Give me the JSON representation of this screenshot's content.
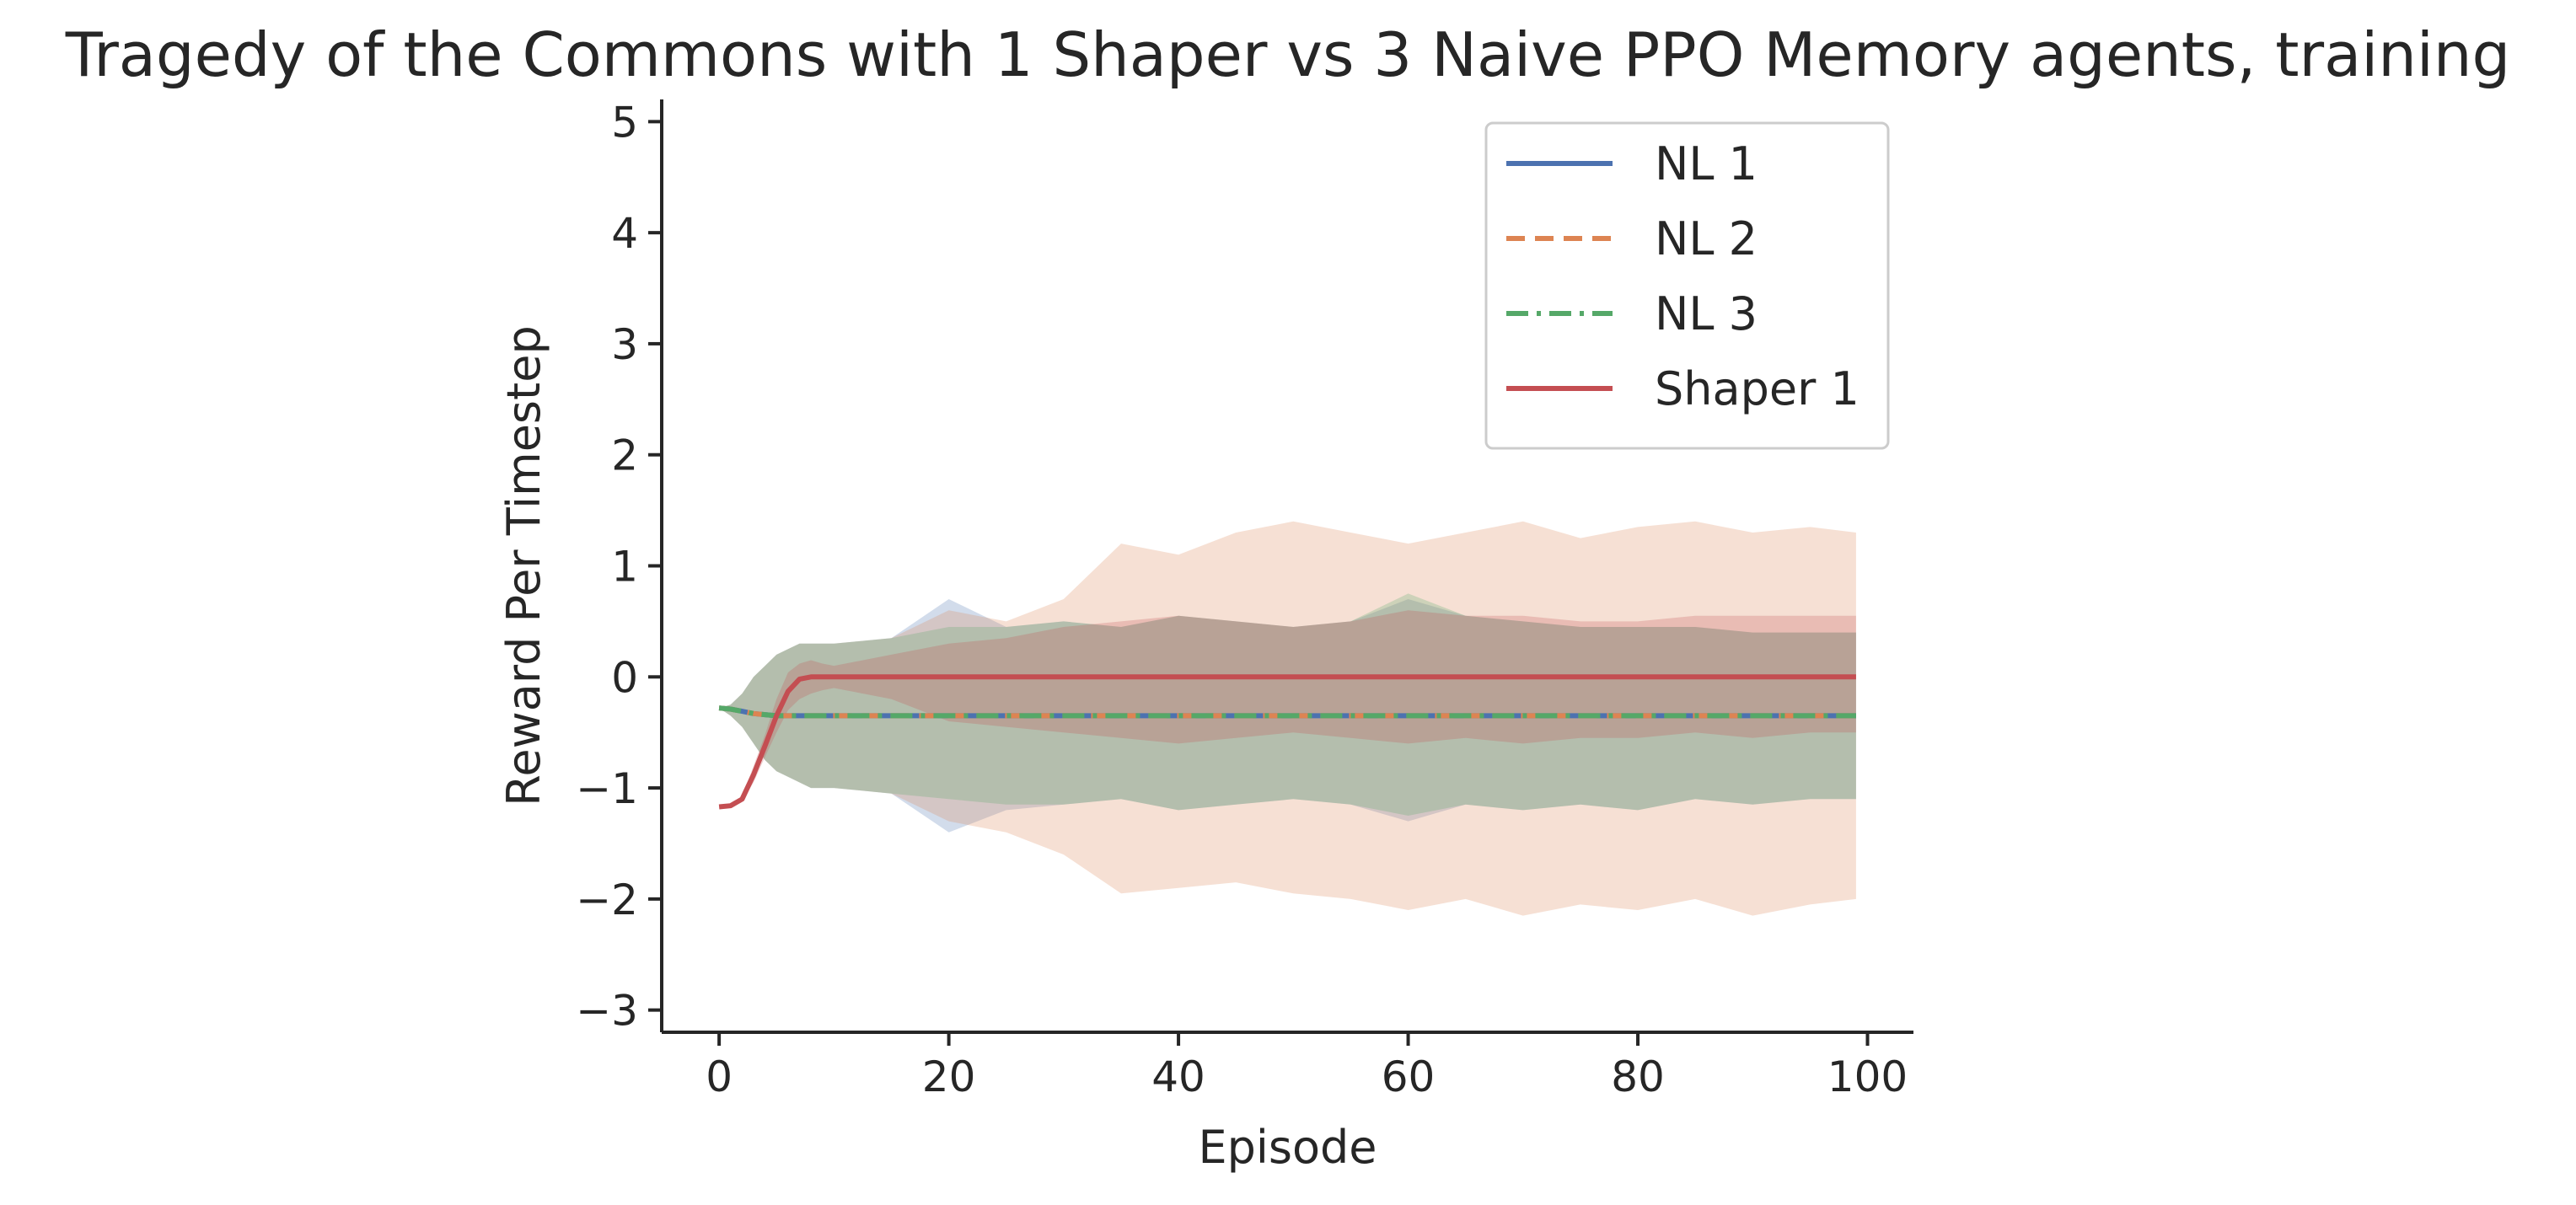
{
  "chart_data": {
    "type": "line",
    "title": "Tragedy of the Commons with 1 Shaper vs 3 Naive PPO Memory agents, training",
    "xlabel": "Episode",
    "ylabel": "Reward Per Timestep",
    "xlim": [
      -5,
      104
    ],
    "ylim": [
      -3.2,
      5.2
    ],
    "xticks": [
      0,
      20,
      40,
      60,
      80,
      100
    ],
    "yticks": [
      -3,
      -2,
      -1,
      0,
      1,
      2,
      3,
      4,
      5
    ],
    "xtick_labels": [
      "0",
      "20",
      "40",
      "60",
      "80",
      "100"
    ],
    "ytick_labels": [
      "−3",
      "−2",
      "−1",
      "0",
      "1",
      "2",
      "3",
      "4",
      "5"
    ],
    "grid": false,
    "legend_position": "top-right",
    "x": [
      0,
      1,
      2,
      3,
      4,
      5,
      6,
      7,
      8,
      9,
      10,
      15,
      20,
      25,
      30,
      35,
      40,
      45,
      50,
      55,
      60,
      65,
      70,
      75,
      80,
      85,
      90,
      95,
      99
    ],
    "series": [
      {
        "name": "NL 1",
        "color": "#4c72b0",
        "dash": "solid",
        "values": [
          -0.28,
          -0.29,
          -0.31,
          -0.33,
          -0.34,
          -0.35,
          -0.35,
          -0.35,
          -0.35,
          -0.35,
          -0.35,
          -0.35,
          -0.35,
          -0.35,
          -0.35,
          -0.35,
          -0.35,
          -0.35,
          -0.35,
          -0.35,
          -0.35,
          -0.35,
          -0.35,
          -0.35,
          -0.35,
          -0.35,
          -0.35,
          -0.35,
          -0.35
        ],
        "lower": [
          -0.28,
          -0.35,
          -0.45,
          -0.6,
          -0.75,
          -0.85,
          -0.9,
          -0.95,
          -1.0,
          -1.0,
          -1.0,
          -1.05,
          -1.4,
          -1.2,
          -1.15,
          -1.1,
          -1.2,
          -1.15,
          -1.1,
          -1.15,
          -1.3,
          -1.15,
          -1.2,
          -1.15,
          -1.2,
          -1.1,
          -1.15,
          -1.1,
          -1.1
        ],
        "upper": [
          -0.28,
          -0.25,
          -0.15,
          0.0,
          0.1,
          0.2,
          0.25,
          0.3,
          0.3,
          0.3,
          0.3,
          0.35,
          0.7,
          0.45,
          0.5,
          0.45,
          0.55,
          0.5,
          0.45,
          0.5,
          0.7,
          0.55,
          0.5,
          0.45,
          0.45,
          0.45,
          0.4,
          0.4,
          0.4
        ]
      },
      {
        "name": "NL 2",
        "color": "#dd8452",
        "dash": "dashed",
        "values": [
          -0.28,
          -0.29,
          -0.31,
          -0.33,
          -0.34,
          -0.35,
          -0.35,
          -0.35,
          -0.35,
          -0.35,
          -0.35,
          -0.35,
          -0.35,
          -0.35,
          -0.35,
          -0.35,
          -0.35,
          -0.35,
          -0.35,
          -0.35,
          -0.35,
          -0.35,
          -0.35,
          -0.35,
          -0.35,
          -0.35,
          -0.35,
          -0.35,
          -0.35
        ],
        "lower": [
          -0.28,
          -0.35,
          -0.45,
          -0.6,
          -0.75,
          -0.85,
          -0.9,
          -0.95,
          -1.0,
          -1.0,
          -1.0,
          -1.05,
          -1.3,
          -1.4,
          -1.6,
          -1.95,
          -1.9,
          -1.85,
          -1.95,
          -2.0,
          -2.1,
          -2.0,
          -2.15,
          -2.05,
          -2.1,
          -2.0,
          -2.15,
          -2.05,
          -2.0
        ],
        "upper": [
          -0.28,
          -0.25,
          -0.15,
          0.0,
          0.1,
          0.2,
          0.25,
          0.3,
          0.3,
          0.3,
          0.3,
          0.35,
          0.6,
          0.5,
          0.7,
          1.2,
          1.1,
          1.3,
          1.4,
          1.3,
          1.2,
          1.3,
          1.4,
          1.25,
          1.35,
          1.4,
          1.3,
          1.35,
          1.3
        ]
      },
      {
        "name": "NL 3",
        "color": "#55a868",
        "dash": "dashdot",
        "values": [
          -0.28,
          -0.29,
          -0.31,
          -0.33,
          -0.34,
          -0.35,
          -0.35,
          -0.35,
          -0.35,
          -0.35,
          -0.35,
          -0.35,
          -0.35,
          -0.35,
          -0.35,
          -0.35,
          -0.35,
          -0.35,
          -0.35,
          -0.35,
          -0.35,
          -0.35,
          -0.35,
          -0.35,
          -0.35,
          -0.35,
          -0.35,
          -0.35,
          -0.35
        ],
        "lower": [
          -0.28,
          -0.35,
          -0.45,
          -0.6,
          -0.75,
          -0.85,
          -0.9,
          -0.95,
          -1.0,
          -1.0,
          -1.0,
          -1.05,
          -1.1,
          -1.15,
          -1.15,
          -1.1,
          -1.2,
          -1.15,
          -1.1,
          -1.15,
          -1.25,
          -1.15,
          -1.2,
          -1.15,
          -1.2,
          -1.1,
          -1.15,
          -1.1,
          -1.1
        ],
        "upper": [
          -0.28,
          -0.25,
          -0.15,
          0.0,
          0.1,
          0.2,
          0.25,
          0.3,
          0.3,
          0.3,
          0.3,
          0.35,
          0.45,
          0.45,
          0.5,
          0.45,
          0.55,
          0.5,
          0.45,
          0.5,
          0.75,
          0.55,
          0.5,
          0.45,
          0.45,
          0.45,
          0.4,
          0.4,
          0.4
        ]
      },
      {
        "name": "Shaper 1",
        "color": "#c44e52",
        "dash": "solid",
        "values": [
          -1.17,
          -1.16,
          -1.1,
          -0.88,
          -0.62,
          -0.35,
          -0.13,
          -0.02,
          0.0,
          0.0,
          0.0,
          0.0,
          0.0,
          0.0,
          0.0,
          0.0,
          0.0,
          0.0,
          0.0,
          0.0,
          0.0,
          0.0,
          0.0,
          0.0,
          0.0,
          0.0,
          0.0,
          0.0,
          0.0
        ],
        "lower": [
          -1.17,
          -1.17,
          -1.12,
          -0.95,
          -0.72,
          -0.5,
          -0.3,
          -0.2,
          -0.15,
          -0.12,
          -0.1,
          -0.2,
          -0.4,
          -0.45,
          -0.5,
          -0.55,
          -0.6,
          -0.55,
          -0.5,
          -0.55,
          -0.6,
          -0.55,
          -0.6,
          -0.55,
          -0.55,
          -0.5,
          -0.55,
          -0.5,
          -0.5
        ],
        "upper": [
          -1.17,
          -1.15,
          -1.08,
          -0.8,
          -0.52,
          -0.2,
          0.04,
          0.12,
          0.15,
          0.12,
          0.1,
          0.2,
          0.3,
          0.35,
          0.45,
          0.5,
          0.55,
          0.5,
          0.45,
          0.5,
          0.6,
          0.55,
          0.55,
          0.5,
          0.5,
          0.55,
          0.55,
          0.55,
          0.55
        ]
      }
    ]
  }
}
